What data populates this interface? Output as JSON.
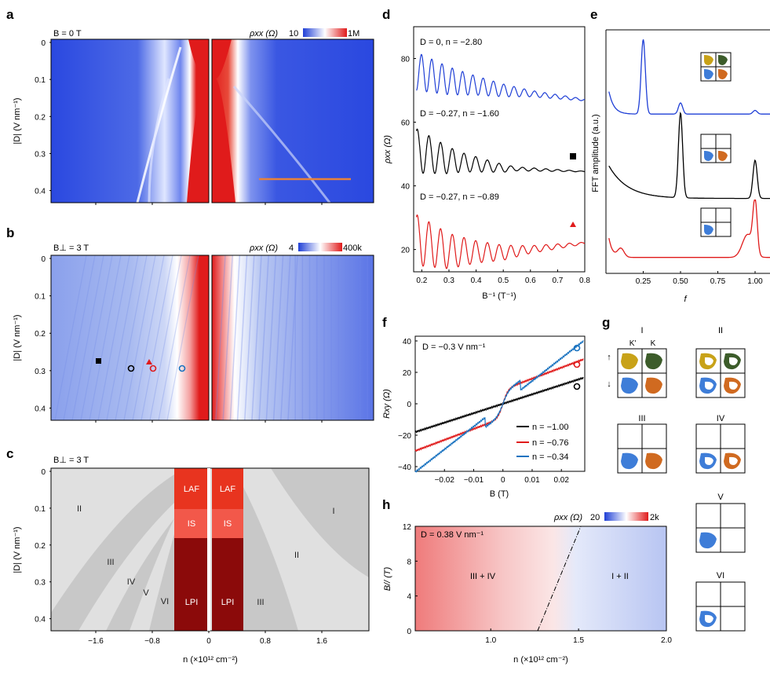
{
  "colors": {
    "blue": "#1f3fd6",
    "red": "#e01b1b",
    "lightblue": "#9db1e8",
    "gray": "#c8c8c8",
    "lightgray": "#e0e0e0",
    "darkred": "#8b0a0a",
    "midred": "#f04a3c",
    "orange": "#e8823a",
    "lafred": "#e8341f",
    "isred": "#f2584a"
  },
  "panels": {
    "a": {
      "letter": "a",
      "condition": "B = 0 T",
      "cbar_label": "ρxx (Ω)",
      "cbar_min": "10",
      "cbar_max": "1M"
    },
    "b": {
      "letter": "b",
      "condition": "B⊥ = 3 T",
      "cbar_label": "ρxx (Ω)",
      "cbar_min": "4",
      "cbar_max": "400k"
    },
    "c": {
      "letter": "c",
      "condition": "B⊥ = 3 T",
      "regions": [
        "LAF",
        "IS",
        "LPI",
        "LAF",
        "IS",
        "LPI",
        "I",
        "II",
        "II",
        "III",
        "III",
        "IV",
        "V",
        "VI"
      ]
    },
    "shared_axes": {
      "ylabel": "|D| (V nm⁻¹)",
      "yticks": [
        "0",
        "0.1",
        "0.2",
        "0.3",
        "0.4"
      ],
      "xlabel": "n (×10¹² cm⁻²)",
      "xticks": [
        "−1.6",
        "−0.8",
        "0",
        "0.8",
        "1.6"
      ]
    },
    "d": {
      "letter": "d",
      "ylabel": "ρxx (Ω)",
      "xlabel": "B⁻¹ (T⁻¹)",
      "yticks": [
        "20",
        "40",
        "60",
        "80"
      ],
      "xticks": [
        "0.2",
        "0.3",
        "0.4",
        "0.5",
        "0.6",
        "0.7",
        "0.8"
      ],
      "labels": [
        "D = 0, n = −2.80",
        "D = −0.27, n = −1.60",
        "D = −0.27, n = −0.89"
      ]
    },
    "e": {
      "letter": "e",
      "ylabel": "FFT amplitude (a.u.)",
      "xlabel": "f",
      "xticks": [
        "0.25",
        "0.50",
        "0.75",
        "1.00"
      ]
    },
    "f": {
      "letter": "f",
      "title": "D = −0.3 V nm⁻¹",
      "ylabel": "Rxy (Ω)",
      "xlabel": "B (T)",
      "yticks": [
        "40",
        "20",
        "0",
        "−20",
        "−40"
      ],
      "xticks": [
        "−0.02",
        "−0.01",
        "0",
        "0.01",
        "0.02"
      ],
      "legend": [
        "n = −1.00",
        "n = −0.76",
        "n = −0.34"
      ]
    },
    "g": {
      "letter": "g",
      "states": [
        "I",
        "II",
        "III",
        "IV",
        "V",
        "VI"
      ],
      "valley_labels": [
        "K'",
        "K"
      ],
      "spin_up": "↑",
      "spin_down": "↓"
    },
    "h": {
      "letter": "h",
      "title": "D = 0.38 V nm⁻¹",
      "cbar_label": "ρxx (Ω)",
      "cbar_min": "20",
      "cbar_max": "2k",
      "ylabel": "B// (T)",
      "xlabel": "n (×10¹² cm⁻²)",
      "yticks": [
        "12",
        "8",
        "4",
        "0"
      ],
      "xticks": [
        "1.0",
        "1.5",
        "2.0"
      ],
      "regions": [
        "III + IV",
        "I + II"
      ]
    }
  },
  "chart_data": [
    {
      "type": "line",
      "title": "d",
      "xlabel": "B⁻¹ (T⁻¹)",
      "ylabel": "ρxx (Ω)",
      "xlim": [
        0.17,
        0.8
      ],
      "ylim": [
        13,
        90
      ],
      "series": [
        {
          "name": "D = 0, n = −2.80",
          "color": "#1f3fd6",
          "base": [
            [
              0.18,
              76
            ],
            [
              0.3,
              73
            ],
            [
              0.5,
              70
            ],
            [
              0.8,
              67
            ]
          ],
          "amp": [
            [
              0.18,
              6
            ],
            [
              0.4,
              3
            ],
            [
              0.6,
              1
            ],
            [
              0.8,
              0.3
            ]
          ],
          "freq": 84
        },
        {
          "name": "D = −0.27, n = −1.60",
          "color": "#000000",
          "base": [
            [
              0.18,
              51
            ],
            [
              0.3,
              48
            ],
            [
              0.5,
              45.5
            ],
            [
              0.8,
              44.5
            ]
          ],
          "amp": [
            [
              0.18,
              7
            ],
            [
              0.35,
              3
            ],
            [
              0.55,
              0.6
            ],
            [
              0.8,
              0.1
            ]
          ],
          "freq": 84
        },
        {
          "name": "D = −0.27, n = −0.89",
          "color": "#e01b1b",
          "base": [
            [
              0.18,
              23
            ],
            [
              0.3,
              19.5
            ],
            [
              0.5,
              19
            ],
            [
              0.8,
              22
            ]
          ],
          "amp": [
            [
              0.18,
              8
            ],
            [
              0.4,
              3.5
            ],
            [
              0.6,
              1.2
            ],
            [
              0.8,
              0.3
            ]
          ],
          "freq": 84
        }
      ]
    },
    {
      "type": "line",
      "title": "e",
      "xlabel": "f",
      "ylabel": "FFT amplitude",
      "xlim": [
        0,
        1.1
      ],
      "series": [
        {
          "name": "blue",
          "color": "#1f3fd6",
          "peaks": [
            [
              0.25,
              1.0
            ],
            [
              0.5,
              0.15
            ],
            [
              1.0,
              0.05
            ]
          ]
        },
        {
          "name": "black",
          "color": "#000000",
          "peaks": [
            [
              0.5,
              1.0
            ],
            [
              1.0,
              0.45
            ]
          ]
        },
        {
          "name": "red",
          "color": "#e01b1b",
          "peaks": [
            [
              1.0,
              0.9
            ]
          ]
        }
      ]
    },
    {
      "type": "line",
      "title": "f",
      "xlabel": "B (T)",
      "ylabel": "Rxy (Ω)",
      "xlim": [
        -0.03,
        0.028
      ],
      "ylim": [
        -43,
        43
      ],
      "series": [
        {
          "name": "n = −1.00",
          "color": "#000000",
          "slope": 600,
          "offset": 0
        },
        {
          "name": "n = −0.76",
          "color": "#e01b1b",
          "slope": 1000,
          "offset": 0,
          "step": 8
        },
        {
          "name": "n = −0.34",
          "color": "#1a73c0",
          "slope": 1450,
          "offset": 0
        }
      ]
    }
  ]
}
